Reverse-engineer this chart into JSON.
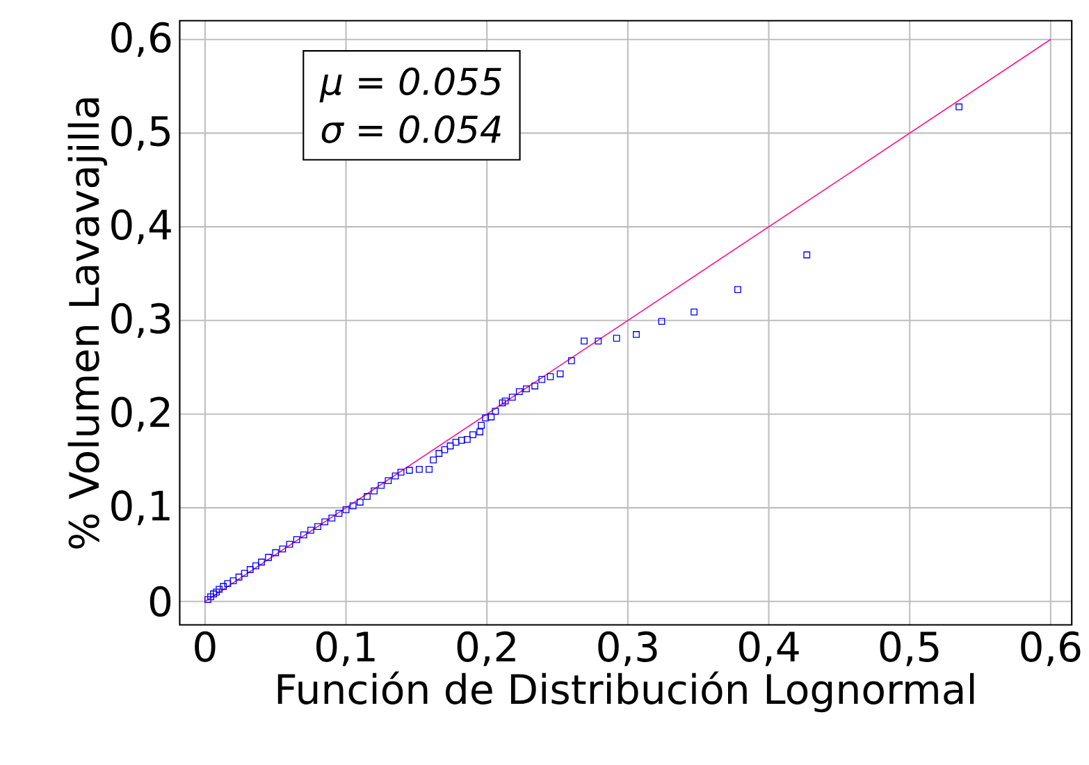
{
  "chart_data": {
    "type": "scatter",
    "xlabel": "Función de Distribución Lognormal",
    "ylabel": "% Volumen Lavavajilla",
    "annotations": [
      "μ = 0.055",
      "σ = 0.054"
    ],
    "xlim": [
      -0.018,
      0.615
    ],
    "ylim": [
      -0.025,
      0.62
    ],
    "xticks": [
      {
        "value": 0,
        "label": "0"
      },
      {
        "value": 0.1,
        "label": "0,1"
      },
      {
        "value": 0.2,
        "label": "0,2"
      },
      {
        "value": 0.3,
        "label": "0,3"
      },
      {
        "value": 0.4,
        "label": "0,4"
      },
      {
        "value": 0.5,
        "label": "0,5"
      },
      {
        "value": 0.6,
        "label": "0,6"
      }
    ],
    "yticks": [
      {
        "value": 0,
        "label": "0"
      },
      {
        "value": 0.1,
        "label": "0,1"
      },
      {
        "value": 0.2,
        "label": "0,2"
      },
      {
        "value": 0.3,
        "label": "0,3"
      },
      {
        "value": 0.4,
        "label": "0,4"
      },
      {
        "value": 0.5,
        "label": "0,5"
      },
      {
        "value": 0.6,
        "label": "0,6"
      }
    ],
    "grid": true,
    "marker": "square",
    "series": [
      {
        "color": "#0000ff",
        "x": [
          0.002,
          0.004,
          0.006,
          0.008,
          0.01,
          0.013,
          0.016,
          0.02,
          0.024,
          0.028,
          0.032,
          0.036,
          0.04,
          0.045,
          0.05,
          0.055,
          0.06,
          0.065,
          0.07,
          0.075,
          0.08,
          0.085,
          0.09,
          0.095,
          0.1,
          0.105,
          0.11,
          0.115,
          0.12,
          0.125,
          0.13,
          0.135,
          0.139,
          0.145,
          0.152,
          0.159,
          0.162,
          0.166,
          0.17,
          0.174,
          0.178,
          0.182,
          0.186,
          0.19,
          0.195,
          0.196,
          0.199,
          0.203,
          0.206,
          0.211,
          0.213,
          0.218,
          0.223,
          0.228,
          0.234,
          0.239,
          0.245,
          0.252,
          0.26,
          0.269,
          0.279,
          0.292,
          0.306,
          0.324,
          0.347,
          0.378,
          0.427,
          0.535
        ],
        "values": [
          0.002,
          0.005,
          0.008,
          0.01,
          0.013,
          0.016,
          0.019,
          0.022,
          0.026,
          0.03,
          0.034,
          0.038,
          0.042,
          0.047,
          0.052,
          0.056,
          0.061,
          0.066,
          0.071,
          0.076,
          0.08,
          0.085,
          0.089,
          0.094,
          0.098,
          0.102,
          0.106,
          0.112,
          0.118,
          0.124,
          0.129,
          0.134,
          0.138,
          0.14,
          0.141,
          0.141,
          0.151,
          0.158,
          0.162,
          0.166,
          0.17,
          0.172,
          0.173,
          0.178,
          0.181,
          0.188,
          0.196,
          0.197,
          0.203,
          0.212,
          0.214,
          0.218,
          0.224,
          0.227,
          0.23,
          0.237,
          0.24,
          0.243,
          0.257,
          0.278,
          0.278,
          0.281,
          0.285,
          0.299,
          0.309,
          0.333,
          0.37,
          0.528
        ]
      },
      {
        "type": "line",
        "marker": "none",
        "color": "#ff1493",
        "x": [
          0,
          0.6
        ],
        "values": [
          0,
          0.6
        ]
      }
    ]
  }
}
